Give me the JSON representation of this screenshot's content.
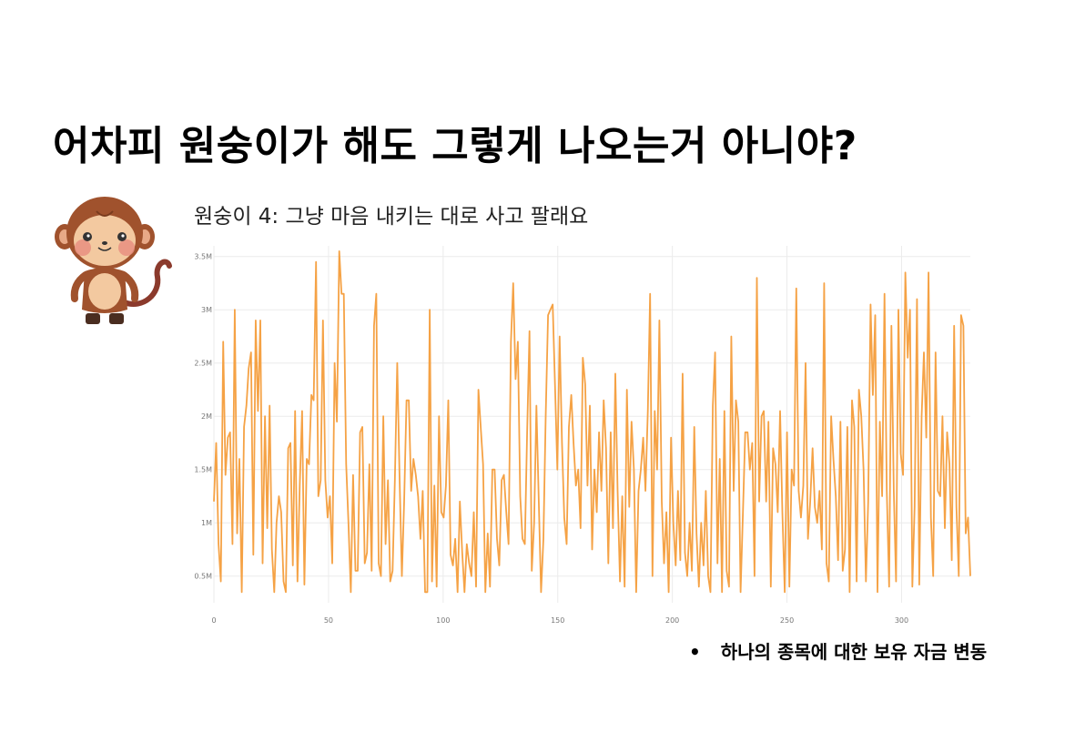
{
  "slide": {
    "title": "어차피 원숭이가 해도 그렇게 나오는거 아니야?",
    "bullet_text": "하나의 종목에 대한 보유 자금 변동",
    "bullet_marker": "•"
  },
  "icons": {
    "mascot": "monkey-illustration"
  },
  "colors": {
    "line": "#F5A245",
    "grid": "#EBEBEB",
    "tick": "#777777"
  },
  "chart_data": {
    "type": "line",
    "title": "원숭이 4: 그냥 마음 내키는 대로 사고 팔래요",
    "xlabel": "",
    "ylabel": "",
    "xlim": [
      0,
      330
    ],
    "ylim": [
      0.25,
      3.6
    ],
    "x_ticks": [
      0,
      50,
      100,
      150,
      200,
      250,
      300
    ],
    "x_tick_labels": [
      "0",
      "50",
      "100",
      "150",
      "200",
      "250",
      "300"
    ],
    "y_ticks": [
      0.5,
      1,
      1.5,
      2,
      2.5,
      3,
      3.5
    ],
    "y_tick_labels": [
      "0.5M",
      "1M",
      "1.5M",
      "2M",
      "2.5M",
      "3M",
      "3.5M"
    ],
    "unit_note": "values in millions",
    "grid": true,
    "series": [
      {
        "name": "",
        "color": "#F5A245",
        "values": [
          1.2,
          1.75,
          0.8,
          0.45,
          2.7,
          1.45,
          1.8,
          1.85,
          0.8,
          3.0,
          0.9,
          1.6,
          0.35,
          1.9,
          2.1,
          2.45,
          2.6,
          0.7,
          2.9,
          2.05,
          2.9,
          0.62,
          2.0,
          0.95,
          2.1,
          0.75,
          0.35,
          1.0,
          1.25,
          1.1,
          0.45,
          0.35,
          1.7,
          1.75,
          0.6,
          2.05,
          0.45,
          1.35,
          2.05,
          0.42,
          1.6,
          1.55,
          2.2,
          2.15,
          3.45,
          1.25,
          1.4,
          2.9,
          1.4,
          1.05,
          1.25,
          0.62,
          2.5,
          1.95,
          3.55,
          3.15,
          3.15,
          1.55,
          1.0,
          0.35,
          1.45,
          0.55,
          0.55,
          1.85,
          1.9,
          0.62,
          0.72,
          1.55,
          0.55,
          2.85,
          3.15,
          0.62,
          0.5,
          2.0,
          0.8,
          1.4,
          0.45,
          0.55,
          1.4,
          2.5,
          1.45,
          0.5,
          1.2,
          2.15,
          2.15,
          1.3,
          1.6,
          1.45,
          1.25,
          0.85,
          1.3,
          0.35,
          0.35,
          3.0,
          0.45,
          1.35,
          0.4,
          2.0,
          1.1,
          1.05,
          1.35,
          2.15,
          0.7,
          0.6,
          0.85,
          0.35,
          1.2,
          0.72,
          0.35,
          0.8,
          0.62,
          0.5,
          1.1,
          0.4,
          2.25,
          1.9,
          1.55,
          0.35,
          0.9,
          0.4,
          1.5,
          1.5,
          0.85,
          0.6,
          1.4,
          1.45,
          1.1,
          0.8,
          2.7,
          3.25,
          2.35,
          2.7,
          1.25,
          0.85,
          0.8,
          1.85,
          2.8,
          0.55,
          1.0,
          2.1,
          1.2,
          0.35,
          0.85,
          2.0,
          2.95,
          3.0,
          3.05,
          2.3,
          1.5,
          2.75,
          1.75,
          1.05,
          0.8,
          1.9,
          2.2,
          1.75,
          1.35,
          1.5,
          0.95,
          2.55,
          2.3,
          1.35,
          2.1,
          0.75,
          1.5,
          1.1,
          1.85,
          1.3,
          2.15,
          1.7,
          0.62,
          1.85,
          0.95,
          2.4,
          1.3,
          0.45,
          1.25,
          0.4,
          2.25,
          1.15,
          1.95,
          1.5,
          0.35,
          1.3,
          1.5,
          1.8,
          1.3,
          2.05,
          3.15,
          0.5,
          2.05,
          1.5,
          2.9,
          1.2,
          0.62,
          1.1,
          0.35,
          1.8,
          1.0,
          0.6,
          1.3,
          0.65,
          2.4,
          0.72,
          0.5,
          1.0,
          0.55,
          1.9,
          0.9,
          0.4,
          1.0,
          0.6,
          1.3,
          0.5,
          0.35,
          2.1,
          2.6,
          0.62,
          1.6,
          0.35,
          2.05,
          0.55,
          0.4,
          2.75,
          1.3,
          2.15,
          1.95,
          0.35,
          1.1,
          1.85,
          1.85,
          1.5,
          1.75,
          0.5,
          3.3,
          1.2,
          2.0,
          2.05,
          1.2,
          1.95,
          0.4,
          1.7,
          1.55,
          1.1,
          2.05,
          1.1,
          0.35,
          1.85,
          0.4,
          1.5,
          1.35,
          3.2,
          1.3,
          1.05,
          1.35,
          2.5,
          0.85,
          1.2,
          1.7,
          1.15,
          1.0,
          1.3,
          0.75,
          3.25,
          0.62,
          0.45,
          2.0,
          1.6,
          1.25,
          0.65,
          1.95,
          0.55,
          0.75,
          1.9,
          0.35,
          2.15,
          1.9,
          0.45,
          2.25,
          2.0,
          1.5,
          0.45,
          1.2,
          3.05,
          2.2,
          2.95,
          0.35,
          1.95,
          1.25,
          3.15,
          1.3,
          0.4,
          2.85,
          1.3,
          0.45,
          3.0,
          1.65,
          1.45,
          3.35,
          2.55,
          3.0,
          0.4,
          1.15,
          3.1,
          0.42,
          2.0,
          2.6,
          1.8,
          3.35,
          1.05,
          0.5,
          2.6,
          1.3,
          1.25,
          2.0,
          0.95,
          1.85,
          1.55,
          0.65,
          2.85,
          1.15,
          0.5,
          2.95,
          2.85,
          0.9,
          1.05,
          0.5
        ],
        "values_omitted": "mid-segments of the dense random-walk series are sampled"
      }
    ]
  }
}
